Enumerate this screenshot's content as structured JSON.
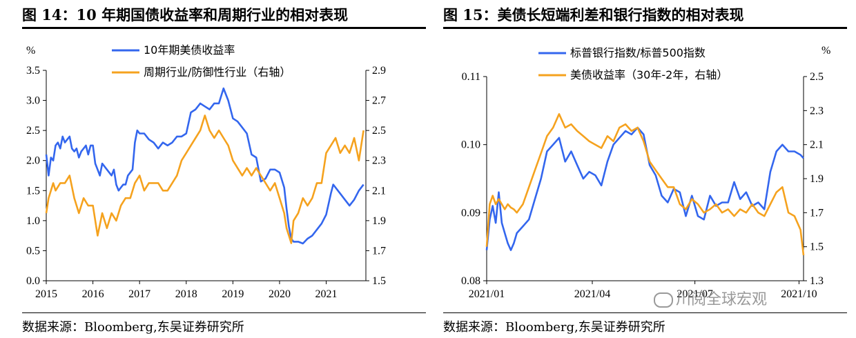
{
  "figures": [
    {
      "title": "图 14：10 年期国债收益率和周期行业的相对表现",
      "source": "数据来源：Bloomberg,东吴证券研究所"
    },
    {
      "title": "图 15：美债长短端利差和银行指数的相对表现",
      "source": "数据来源：Bloomberg,东吴证券研究所",
      "watermark": "川阅全球宏观"
    }
  ],
  "chart_data": [
    {
      "type": "line",
      "title": "",
      "left_unit": "%",
      "right_unit": "",
      "xlabel": "",
      "ylabel": "",
      "x_ticks": [
        "2015",
        "2016",
        "2017",
        "2018",
        "2019",
        "2020",
        "2021"
      ],
      "x_range": [
        2015.0,
        2021.85
      ],
      "ylim_left": [
        0.0,
        3.5
      ],
      "ylim_right": [
        1.5,
        2.9
      ],
      "left_ticks": [
        "0.0",
        "0.5",
        "1.0",
        "1.5",
        "2.0",
        "2.5",
        "3.0",
        "3.5"
      ],
      "right_ticks": [
        "1.5",
        "1.7",
        "1.9",
        "2.1",
        "2.3",
        "2.5",
        "2.7",
        "2.9"
      ],
      "legend_position": "top",
      "series": [
        {
          "name": "10年期美债收益率",
          "axis": "left",
          "color": "#3366EE",
          "x": [
            2015.0,
            2015.05,
            2015.1,
            2015.15,
            2015.2,
            2015.25,
            2015.3,
            2015.35,
            2015.4,
            2015.45,
            2015.5,
            2015.55,
            2015.6,
            2015.65,
            2015.7,
            2015.75,
            2015.8,
            2015.85,
            2015.9,
            2015.95,
            2016.0,
            2016.05,
            2016.1,
            2016.15,
            2016.2,
            2016.25,
            2016.3,
            2016.35,
            2016.4,
            2016.45,
            2016.5,
            2016.55,
            2016.6,
            2016.65,
            2016.7,
            2016.75,
            2016.8,
            2016.85,
            2016.9,
            2016.95,
            2017.0,
            2017.1,
            2017.2,
            2017.3,
            2017.4,
            2017.5,
            2017.6,
            2017.7,
            2017.8,
            2017.9,
            2018.0,
            2018.1,
            2018.2,
            2018.3,
            2018.4,
            2018.5,
            2018.6,
            2018.7,
            2018.8,
            2018.85,
            2018.9,
            2018.95,
            2019.0,
            2019.1,
            2019.2,
            2019.3,
            2019.4,
            2019.5,
            2019.6,
            2019.7,
            2019.8,
            2019.9,
            2020.0,
            2020.1,
            2020.15,
            2020.2,
            2020.25,
            2020.3,
            2020.4,
            2020.5,
            2020.6,
            2020.7,
            2020.8,
            2020.9,
            2021.0,
            2021.1,
            2021.15,
            2021.2,
            2021.3,
            2021.4,
            2021.5,
            2021.6,
            2021.7,
            2021.8
          ],
          "values": [
            2.1,
            1.75,
            2.05,
            2.0,
            2.25,
            2.3,
            2.2,
            2.4,
            2.3,
            2.35,
            2.4,
            2.2,
            2.15,
            2.2,
            2.05,
            2.15,
            2.2,
            2.25,
            2.1,
            2.25,
            2.25,
            1.95,
            1.85,
            1.75,
            1.95,
            1.9,
            1.85,
            1.8,
            1.75,
            1.85,
            1.6,
            1.5,
            1.55,
            1.6,
            1.6,
            1.75,
            1.8,
            1.85,
            2.3,
            2.5,
            2.45,
            2.45,
            2.35,
            2.3,
            2.2,
            2.3,
            2.25,
            2.3,
            2.4,
            2.4,
            2.45,
            2.8,
            2.85,
            2.95,
            2.9,
            2.85,
            2.95,
            2.95,
            3.2,
            3.1,
            3.0,
            2.85,
            2.7,
            2.65,
            2.55,
            2.45,
            2.1,
            2.05,
            1.65,
            1.7,
            1.85,
            1.85,
            1.8,
            1.55,
            1.2,
            0.9,
            0.7,
            0.65,
            0.65,
            0.62,
            0.7,
            0.75,
            0.85,
            0.95,
            1.1,
            1.45,
            1.6,
            1.55,
            1.45,
            1.35,
            1.25,
            1.35,
            1.5,
            1.6
          ]
        },
        {
          "name": "周期行业/防御性行业（右轴）",
          "axis": "right",
          "color": "#F5A21E",
          "x": [
            2015.0,
            2015.05,
            2015.1,
            2015.15,
            2015.2,
            2015.3,
            2015.4,
            2015.5,
            2015.6,
            2015.7,
            2015.8,
            2015.9,
            2016.0,
            2016.1,
            2016.2,
            2016.3,
            2016.4,
            2016.5,
            2016.6,
            2016.7,
            2016.8,
            2016.9,
            2017.0,
            2017.1,
            2017.2,
            2017.3,
            2017.4,
            2017.5,
            2017.6,
            2017.7,
            2017.8,
            2017.9,
            2018.0,
            2018.1,
            2018.2,
            2018.3,
            2018.35,
            2018.4,
            2018.45,
            2018.5,
            2018.6,
            2018.7,
            2018.8,
            2018.9,
            2019.0,
            2019.1,
            2019.2,
            2019.3,
            2019.4,
            2019.5,
            2019.6,
            2019.7,
            2019.8,
            2019.9,
            2020.0,
            2020.1,
            2020.15,
            2020.2,
            2020.25,
            2020.3,
            2020.4,
            2020.5,
            2020.6,
            2020.7,
            2020.8,
            2020.9,
            2021.0,
            2021.1,
            2021.2,
            2021.3,
            2021.4,
            2021.5,
            2021.6,
            2021.7,
            2021.8
          ],
          "values": [
            1.95,
            2.05,
            2.1,
            2.15,
            2.1,
            2.15,
            2.15,
            2.2,
            2.05,
            1.95,
            2.05,
            2.0,
            2.0,
            1.8,
            1.95,
            1.85,
            1.95,
            1.9,
            2.0,
            2.05,
            2.05,
            2.15,
            2.2,
            2.1,
            2.15,
            2.15,
            2.15,
            2.1,
            2.1,
            2.15,
            2.2,
            2.3,
            2.35,
            2.4,
            2.45,
            2.5,
            2.55,
            2.6,
            2.55,
            2.5,
            2.45,
            2.5,
            2.45,
            2.4,
            2.3,
            2.25,
            2.2,
            2.25,
            2.2,
            2.25,
            2.2,
            2.15,
            2.1,
            2.15,
            2.05,
            1.95,
            1.85,
            1.8,
            1.75,
            1.9,
            1.95,
            2.05,
            2.0,
            2.05,
            2.15,
            2.15,
            2.35,
            2.4,
            2.45,
            2.35,
            2.4,
            2.35,
            2.45,
            2.3,
            2.5
          ]
        }
      ]
    },
    {
      "type": "line",
      "title": "",
      "left_unit": "",
      "right_unit": "%",
      "xlabel": "",
      "ylabel": "",
      "x_ticks": [
        "2021/01",
        "2021/04",
        "2021/07",
        "2021/10"
      ],
      "x_range": [
        0,
        10.5
      ],
      "ylim_left": [
        0.08,
        0.11
      ],
      "ylim_right": [
        1.3,
        2.5
      ],
      "left_ticks": [
        "0.08",
        "0.09",
        "0.10",
        "0.11"
      ],
      "right_ticks": [
        "1.3",
        "1.5",
        "1.7",
        "1.9",
        "2.1",
        "2.3",
        "2.5"
      ],
      "legend_position": "top",
      "series": [
        {
          "name": "标普银行指数/标普500指数",
          "axis": "left",
          "color": "#3366EE",
          "x": [
            0,
            0.1,
            0.2,
            0.3,
            0.4,
            0.5,
            0.6,
            0.7,
            0.8,
            0.9,
            1.0,
            1.2,
            1.4,
            1.6,
            1.8,
            2.0,
            2.2,
            2.4,
            2.6,
            2.8,
            3.0,
            3.2,
            3.4,
            3.6,
            3.8,
            4.0,
            4.2,
            4.4,
            4.6,
            4.8,
            5.0,
            5.2,
            5.4,
            5.6,
            5.8,
            6.0,
            6.2,
            6.4,
            6.6,
            6.8,
            7.0,
            7.2,
            7.4,
            7.6,
            7.8,
            8.0,
            8.2,
            8.4,
            8.6,
            8.8,
            9.0,
            9.2,
            9.4,
            9.6,
            9.8,
            10.0,
            10.2,
            10.4,
            10.5
          ],
          "values": [
            0.0845,
            0.089,
            0.091,
            0.0885,
            0.093,
            0.0885,
            0.087,
            0.0855,
            0.0845,
            0.0855,
            0.087,
            0.088,
            0.089,
            0.092,
            0.095,
            0.099,
            0.1,
            0.101,
            0.0975,
            0.099,
            0.097,
            0.095,
            0.096,
            0.0955,
            0.094,
            0.0975,
            0.1,
            0.101,
            0.102,
            0.1015,
            0.1025,
            0.1015,
            0.097,
            0.0955,
            0.0925,
            0.0915,
            0.0935,
            0.093,
            0.0895,
            0.0925,
            0.0895,
            0.089,
            0.0925,
            0.091,
            0.0915,
            0.0915,
            0.0945,
            0.092,
            0.093,
            0.091,
            0.0915,
            0.0905,
            0.096,
            0.099,
            0.1,
            0.099,
            0.099,
            0.0985,
            0.098
          ]
        },
        {
          "name": "美债收益率（30年-2年，右轴）",
          "axis": "right",
          "color": "#F5A21E",
          "x": [
            0,
            0.1,
            0.2,
            0.3,
            0.4,
            0.5,
            0.6,
            0.7,
            0.8,
            0.9,
            1.0,
            1.2,
            1.4,
            1.6,
            1.8,
            2.0,
            2.2,
            2.4,
            2.6,
            2.8,
            3.0,
            3.2,
            3.4,
            3.6,
            3.8,
            4.0,
            4.2,
            4.4,
            4.6,
            4.8,
            5.0,
            5.2,
            5.4,
            5.6,
            5.8,
            6.0,
            6.2,
            6.4,
            6.6,
            6.8,
            7.0,
            7.2,
            7.4,
            7.6,
            7.8,
            8.0,
            8.2,
            8.4,
            8.6,
            8.8,
            9.0,
            9.2,
            9.4,
            9.6,
            9.8,
            10.0,
            10.2,
            10.4,
            10.5
          ],
          "values": [
            1.5,
            1.75,
            1.8,
            1.75,
            1.78,
            1.75,
            1.72,
            1.75,
            1.73,
            1.72,
            1.7,
            1.75,
            1.85,
            1.95,
            2.05,
            2.15,
            2.2,
            2.28,
            2.2,
            2.22,
            2.18,
            2.15,
            2.12,
            2.1,
            2.08,
            2.15,
            2.12,
            2.2,
            2.22,
            2.18,
            2.2,
            2.12,
            2.0,
            1.95,
            1.9,
            1.85,
            1.85,
            1.75,
            1.72,
            1.78,
            1.75,
            1.7,
            1.72,
            1.75,
            1.7,
            1.72,
            1.68,
            1.72,
            1.7,
            1.75,
            1.7,
            1.68,
            1.75,
            1.82,
            1.85,
            1.7,
            1.68,
            1.6,
            1.45
          ]
        }
      ]
    }
  ]
}
